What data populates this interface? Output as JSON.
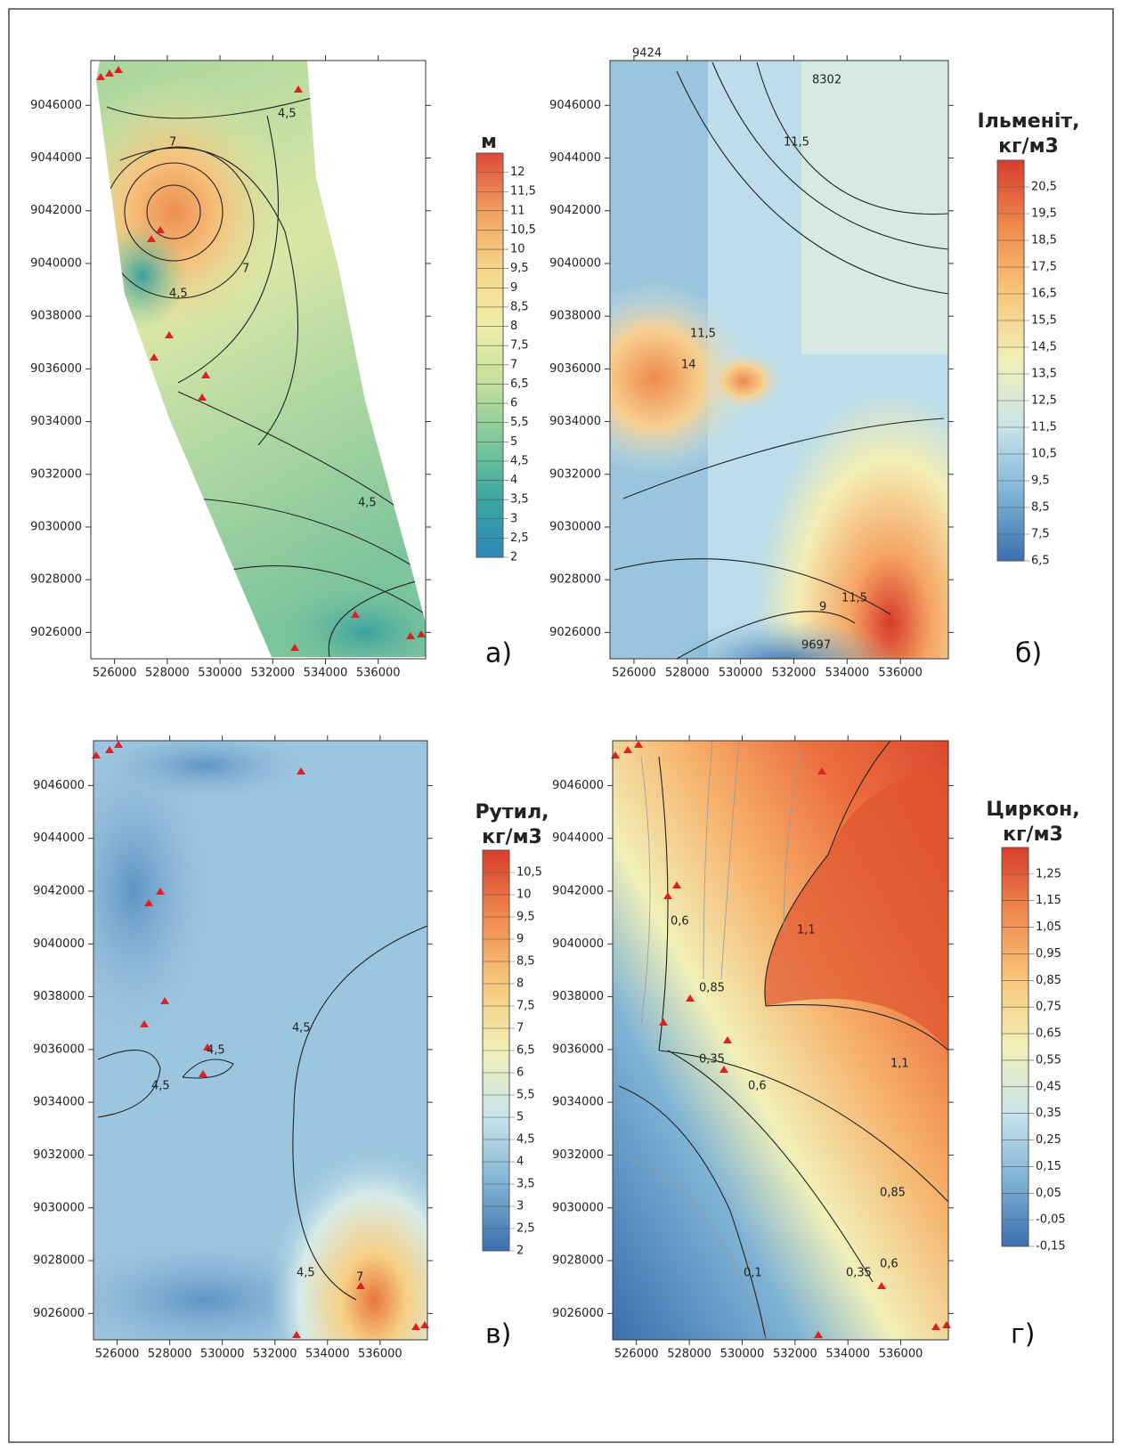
{
  "chart_data": [
    {
      "type": "contour",
      "panel_label": "а)",
      "colorbar_title": [
        "м"
      ],
      "xlim": [
        525100,
        537800
      ],
      "ylim": [
        9025000,
        9047700
      ],
      "xticks": [
        526000,
        528000,
        530000,
        532000,
        534000,
        536000
      ],
      "yticks": [
        9026000,
        9028000,
        9030000,
        9032000,
        9034000,
        9036000,
        9038000,
        9040000,
        9042000,
        9044000,
        9046000
      ],
      "colorbar_lim": [
        2,
        12.5
      ],
      "colorbar_ticks": [
        2,
        {
          "value": 2.5,
          "label": "2,5"
        },
        3,
        {
          "value": 3.5,
          "label": "3,5"
        },
        4,
        {
          "value": 4.5,
          "label": "4,5"
        },
        5,
        {
          "value": 5.5,
          "label": "5,5"
        },
        6,
        {
          "value": 6.5,
          "label": "6,5"
        },
        7,
        {
          "value": 7.5,
          "label": "7,5"
        },
        8,
        {
          "value": 8.5,
          "label": "8,5"
        },
        9,
        {
          "value": 9.5,
          "label": "9,5"
        },
        10,
        {
          "value": 10.5,
          "label": "10,5"
        },
        11,
        {
          "value": 11.5,
          "label": "11,5"
        },
        12
      ],
      "colormap": [
        "#2f86b8",
        "#3aa6a0",
        "#7ec79a",
        "#c3df9c",
        "#eeeeaa",
        "#f7d58a",
        "#f2a060",
        "#e0493a"
      ],
      "contour_labels": [
        "4,5",
        "7",
        "7",
        "4,5",
        "4,5"
      ]
    },
    {
      "type": "contour",
      "panel_label": "б)",
      "colorbar_title": [
        "Ільменіт,",
        "кг/м3"
      ],
      "xlim": [
        525100,
        537800
      ],
      "ylim": [
        9025000,
        9047700
      ],
      "xticks": [
        526000,
        528000,
        530000,
        532000,
        534000,
        536000
      ],
      "yticks": [
        9026000,
        9028000,
        9030000,
        9032000,
        9034000,
        9036000,
        9038000,
        9040000,
        9042000,
        9044000,
        9046000
      ],
      "colorbar_lim": [
        6.5,
        21.5
      ],
      "colorbar_ticks": [
        {
          "value": 6.5,
          "label": "6,5"
        },
        {
          "value": 7.5,
          "label": "7,5"
        },
        {
          "value": 8.5,
          "label": "8,5"
        },
        {
          "value": 9.5,
          "label": "9,5"
        },
        {
          "value": 10.5,
          "label": "10,5"
        },
        {
          "value": 11.5,
          "label": "11,5"
        },
        {
          "value": 12.5,
          "label": "12,5"
        },
        {
          "value": 13.5,
          "label": "13,5"
        },
        {
          "value": 14.5,
          "label": "14,5"
        },
        {
          "value": 15.5,
          "label": "15,5"
        },
        {
          "value": 16.5,
          "label": "16,5"
        },
        {
          "value": 17.5,
          "label": "17,5"
        },
        {
          "value": 18.5,
          "label": "18,5"
        },
        {
          "value": 19.5,
          "label": "19,5"
        },
        {
          "value": 20.5,
          "label": "20,5"
        }
      ],
      "colormap": [
        "#3a6fb0",
        "#7fb3d5",
        "#c8e3ea",
        "#f1f0b8",
        "#f8c77a",
        "#f08a4e",
        "#d73d2c"
      ],
      "contour_labels": [
        "8302",
        "9424",
        "11,5",
        "11,5",
        "14",
        "11,5",
        "9",
        "9697"
      ]
    },
    {
      "type": "contour",
      "panel_label": "в)",
      "colorbar_title": [
        "Рутил,",
        "кг/м3"
      ],
      "xlim": [
        525100,
        537800
      ],
      "ylim": [
        9025000,
        9047700
      ],
      "xticks": [
        526000,
        528000,
        530000,
        532000,
        534000,
        536000
      ],
      "yticks": [
        9026000,
        9028000,
        9030000,
        9032000,
        9034000,
        9036000,
        9038000,
        9040000,
        9042000,
        9044000,
        9046000
      ],
      "colorbar_lim": [
        2,
        11
      ],
      "colorbar_ticks": [
        2,
        {
          "value": 2.5,
          "label": "2,5"
        },
        3,
        {
          "value": 3.5,
          "label": "3,5"
        },
        4,
        {
          "value": 4.5,
          "label": "4,5"
        },
        5,
        {
          "value": 5.5,
          "label": "5,5"
        },
        6,
        {
          "value": 6.5,
          "label": "6,5"
        },
        7,
        {
          "value": 7.5,
          "label": "7,5"
        },
        8,
        {
          "value": 8.5,
          "label": "8,5"
        },
        9,
        {
          "value": 9.5,
          "label": "9,5"
        },
        10,
        {
          "value": 10.5,
          "label": "10,5"
        }
      ],
      "colormap": [
        "#3a6fb0",
        "#7fb3d5",
        "#c8e3ea",
        "#f1f0b8",
        "#f8c77a",
        "#f08a4e",
        "#d73d2c"
      ],
      "contour_labels": [
        "4,5",
        "4,5",
        "4,5",
        "4,5",
        "7"
      ]
    },
    {
      "type": "contour",
      "panel_label": "г)",
      "colorbar_title": [
        "Циркон,",
        "кг/м3"
      ],
      "xlim": [
        525100,
        537800
      ],
      "ylim": [
        9025000,
        9047700
      ],
      "xticks": [
        526000,
        528000,
        530000,
        532000,
        534000,
        536000
      ],
      "yticks": [
        9026000,
        9028000,
        9030000,
        9032000,
        9034000,
        9036000,
        9038000,
        9040000,
        9042000,
        9044000,
        9046000
      ],
      "colorbar_lim": [
        -0.15,
        1.35
      ],
      "colorbar_ticks": [
        {
          "value": -0.15,
          "label": "-0,15"
        },
        {
          "value": -0.05,
          "label": "-0,05"
        },
        {
          "value": 0.05,
          "label": "0,05"
        },
        {
          "value": 0.15,
          "label": "0,15"
        },
        {
          "value": 0.25,
          "label": "0,25"
        },
        {
          "value": 0.35,
          "label": "0,35"
        },
        {
          "value": 0.45,
          "label": "0,45"
        },
        {
          "value": 0.55,
          "label": "0,55"
        },
        {
          "value": 0.65,
          "label": "0,65"
        },
        {
          "value": 0.75,
          "label": "0,75"
        },
        {
          "value": 0.85,
          "label": "0,85"
        },
        {
          "value": 0.95,
          "label": "0,95"
        },
        {
          "value": 1.05,
          "label": "1,05"
        },
        {
          "value": 1.15,
          "label": "1,15"
        },
        {
          "value": 1.25,
          "label": "1,25"
        }
      ],
      "colormap": [
        "#3a6fb0",
        "#7fb3d5",
        "#c8e3ea",
        "#f1f0b8",
        "#f8c77a",
        "#f08a4e",
        "#d73d2c"
      ],
      "contour_labels": [
        "0,6",
        "1,1",
        "0,85",
        "1,1",
        "0,35",
        "0,6",
        "0,85",
        "0,1",
        "0,35",
        "0,6"
      ]
    }
  ]
}
